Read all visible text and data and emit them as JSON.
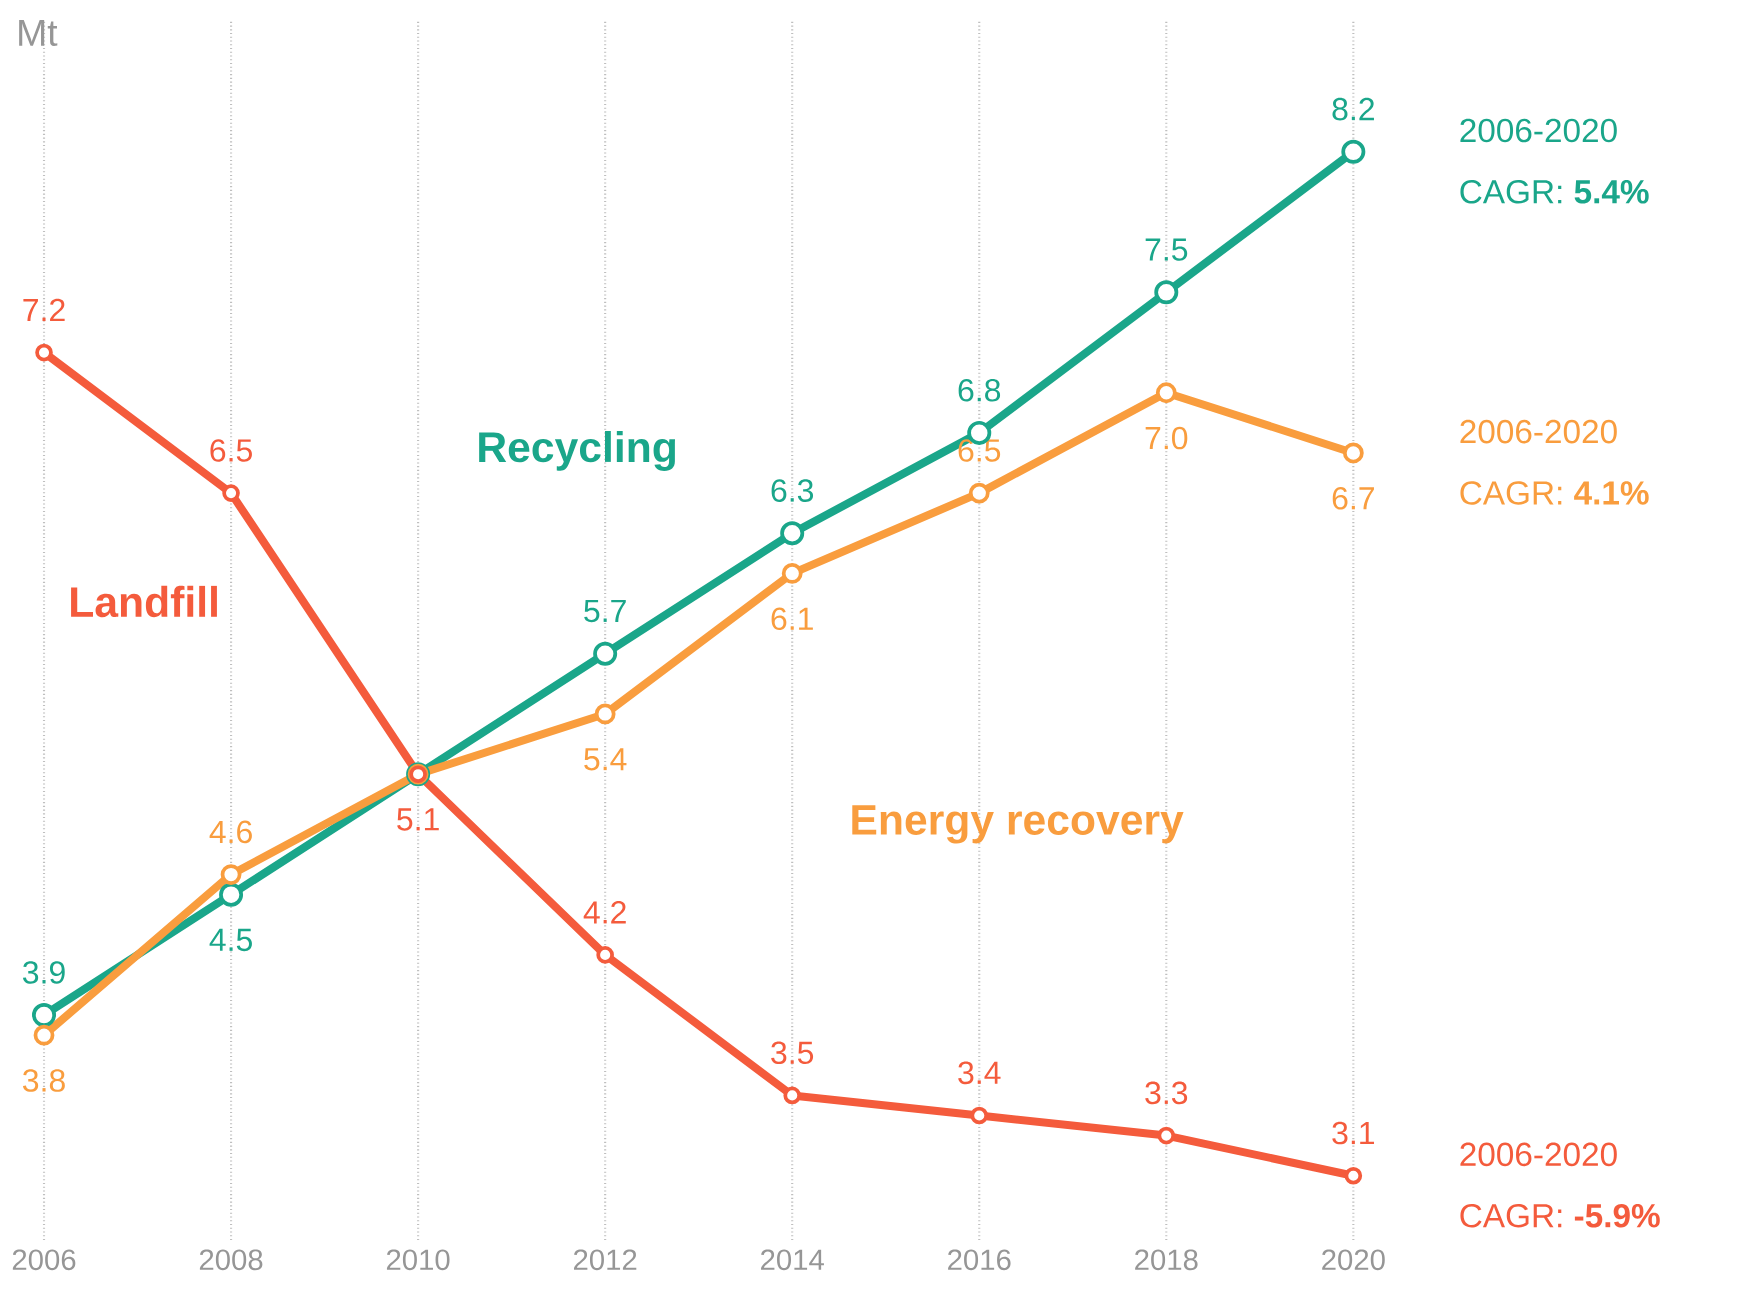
{
  "chart_data": {
    "type": "line",
    "ylabel": "Mt",
    "x": [
      2006,
      2008,
      2010,
      2012,
      2014,
      2016,
      2018,
      2020
    ],
    "xlim": [
      2006,
      2020
    ],
    "xticks": [
      2006,
      2008,
      2010,
      2012,
      2014,
      2016,
      2018,
      2020
    ],
    "series": [
      {
        "name": "Recycling",
        "color": "#1aa68a",
        "values": [
          3.9,
          4.5,
          5.1,
          5.7,
          6.3,
          6.8,
          7.5,
          8.2
        ],
        "value_labels": [
          "3.9",
          "4.5",
          null,
          "5.7",
          "6.3",
          "6.8",
          "7.5",
          "8.2"
        ]
      },
      {
        "name": "Energy recovery",
        "color": "#f99d3e",
        "values": [
          3.8,
          4.6,
          5.1,
          5.4,
          6.1,
          6.5,
          7.0,
          6.7
        ],
        "value_labels": [
          "3.8",
          "4.6",
          null,
          "5.4",
          "6.1",
          "6.5",
          "7.0",
          "6.7"
        ]
      },
      {
        "name": "Landfill",
        "color": "#f45b3c",
        "values": [
          7.2,
          6.5,
          5.1,
          4.2,
          3.5,
          3.4,
          3.3,
          3.1
        ],
        "value_labels": [
          "7.2",
          "6.5",
          "5.1",
          "4.2",
          "3.5",
          "3.4",
          "3.3",
          "3.1"
        ]
      }
    ],
    "annotations": [
      "2006-2020",
      "CAGR: **5.4%**",
      "2006-2020",
      "CAGR: **4.1%**",
      "2006-2020",
      "CAGR: **-5.9%**"
    ],
    "grid": "x",
    "marker": "circle",
    "line_style": "solid"
  }
}
